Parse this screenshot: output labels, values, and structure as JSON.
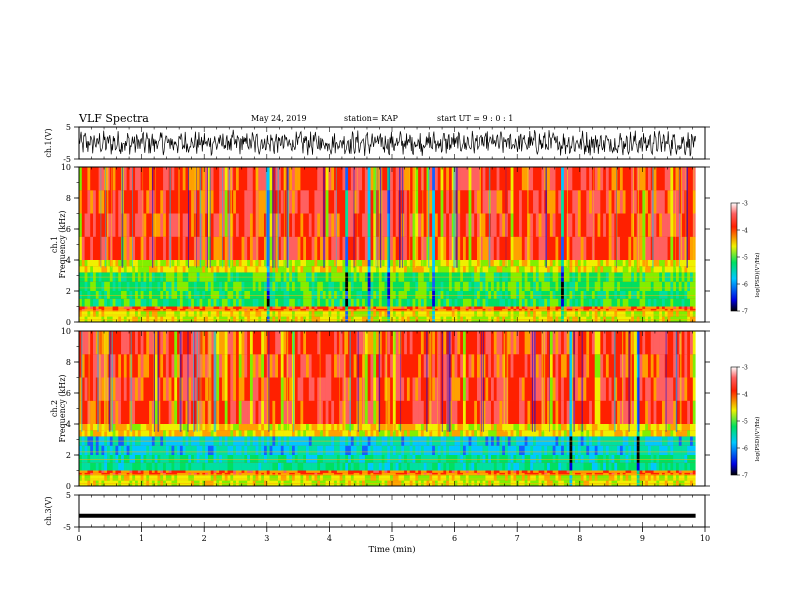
{
  "header": {
    "title": "VLF Spectra",
    "date": "May 24, 2019",
    "station": "station= KAP",
    "start_time": "start  UT  =   9 : 0  : 1"
  },
  "chart_data": [
    {
      "type": "line",
      "panel": "ch1-waveform",
      "ylabel": "ch.1(V)",
      "ylim": [
        -5,
        5
      ],
      "ytick_labels": [
        "5",
        "-5"
      ],
      "x_range_min": [
        0,
        9.85
      ],
      "description_note": "",
      "color": "#000000"
    },
    {
      "type": "heatmap",
      "panel": "ch1-spectrogram",
      "ylabel_channel": "ch.1",
      "ylabel": "Frequency (kHz)",
      "ylim": [
        0,
        10
      ],
      "ytick_labels": [
        "0",
        "2",
        "4",
        "6",
        "8",
        "10"
      ],
      "x_range_min": [
        0,
        9.85
      ],
      "colorbar": {
        "label": "log(PSD)(V²/Hz)",
        "range": [
          -7,
          -3
        ],
        "tick_labels": [
          "-3",
          "-4",
          "-5",
          "-6",
          "-7"
        ]
      }
    },
    {
      "type": "heatmap",
      "panel": "ch2-spectrogram",
      "ylabel_channel": "ch.2",
      "ylabel": "Frequency (kHz)",
      "ylim": [
        0,
        10
      ],
      "ytick_labels": [
        "0",
        "2",
        "4",
        "6",
        "8",
        "10"
      ],
      "x_range_min": [
        0,
        9.85
      ],
      "colorbar": {
        "label": "log(PSD)(V²/Hz)",
        "range": [
          -7,
          -3
        ],
        "tick_labels": [
          "-3",
          "-4",
          "-5",
          "-6",
          "-7"
        ]
      }
    },
    {
      "type": "line",
      "panel": "ch3-waveform",
      "ylabel": "ch.3(V)",
      "ylim": [
        -5,
        5
      ],
      "ytick_labels": [
        "5",
        "-5"
      ],
      "x": [
        0,
        9.85
      ],
      "y": [
        -1.5,
        -1.5
      ],
      "color": "#000000"
    }
  ],
  "xaxis": {
    "label": "Time (min)",
    "range": [
      0,
      10
    ],
    "tick_labels": [
      "0",
      "1",
      "2",
      "3",
      "4",
      "5",
      "6",
      "7",
      "8",
      "9",
      "10"
    ]
  },
  "colors": {
    "background": "#ffffff",
    "axis": "#000000",
    "colormap": [
      "#000000",
      "#0000e0",
      "#00c8ff",
      "#00e060",
      "#f0f000",
      "#ff2000",
      "#ffffff"
    ]
  }
}
